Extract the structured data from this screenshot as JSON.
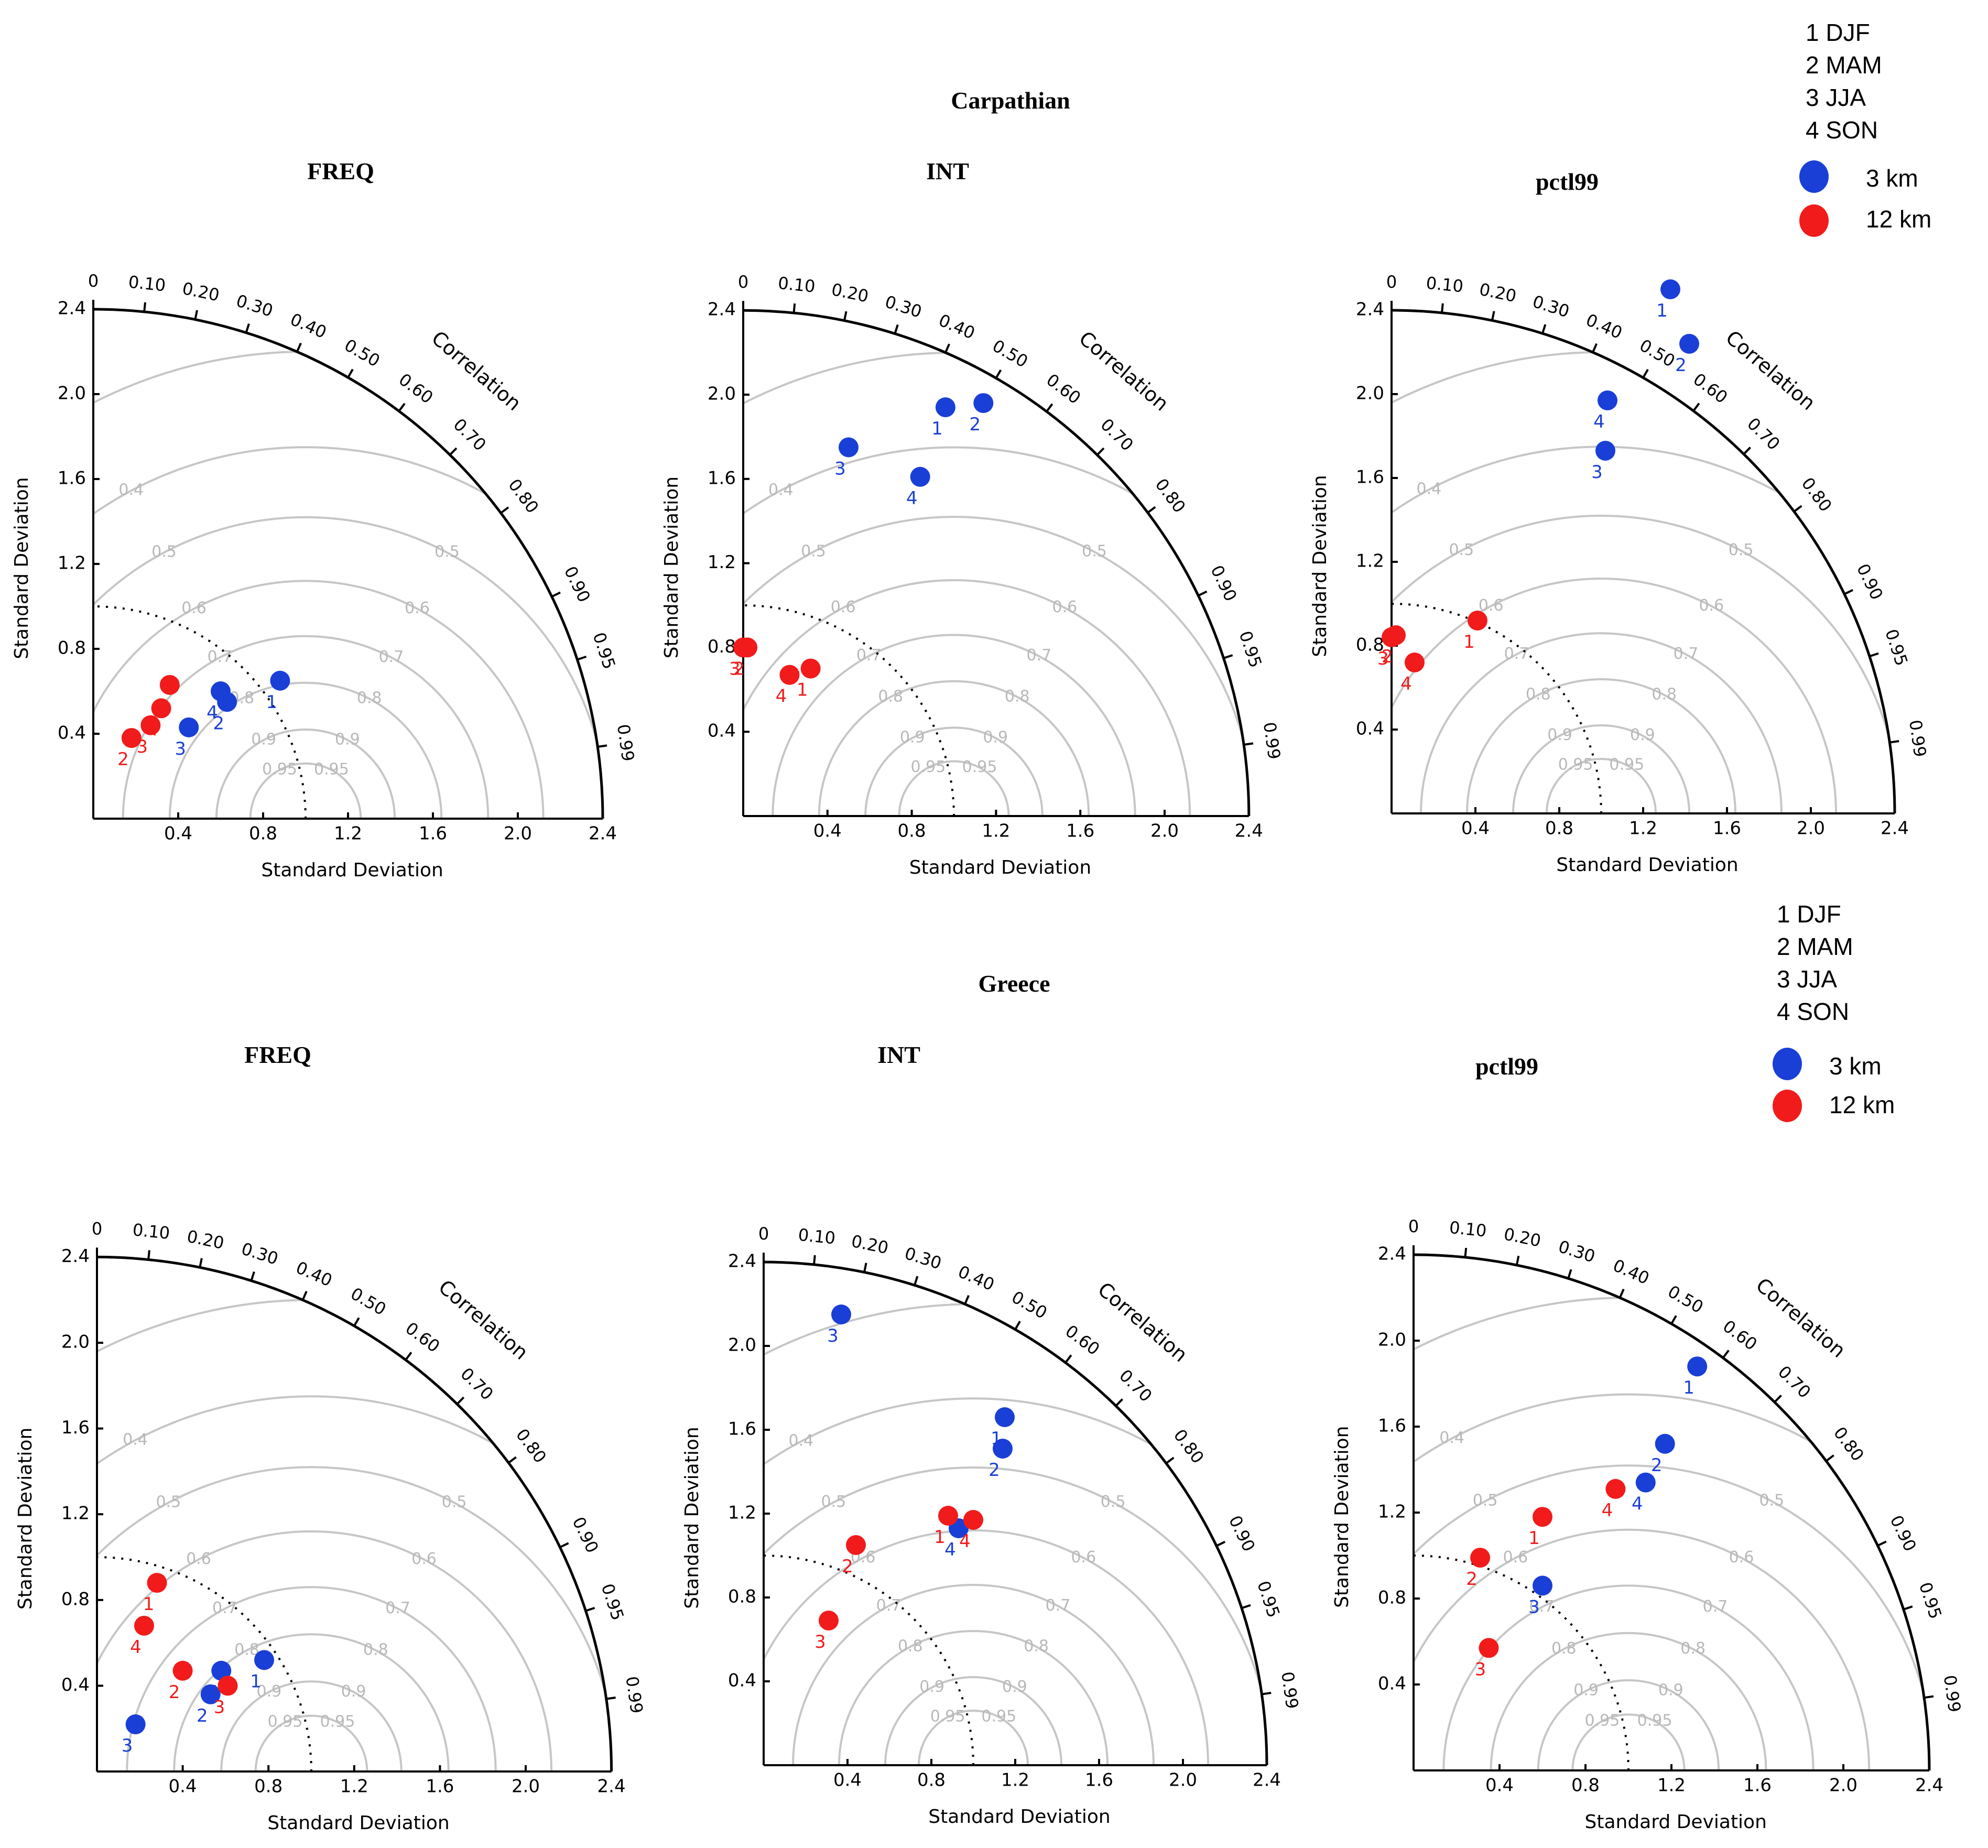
{
  "figure": {
    "legend": {
      "seasons": [
        "1 DJF",
        "2 MAM",
        "3 JJA",
        "4 SON"
      ],
      "resolutions": [
        {
          "label": "3 km",
          "color": "#1a3fd6"
        },
        {
          "label": "12 km",
          "color": "#f11b1b"
        }
      ]
    },
    "colors": {
      "blue": "#1a3fd6",
      "red": "#f11b1b",
      "rms": "#c6c6c6"
    }
  },
  "chart_data": [
    {
      "type": "taylor_diagram",
      "region": "Carpathian",
      "title": "FREQ",
      "xlabel": "Standard Deviation",
      "ylabel": "Standard Deviation",
      "corr_title": "Correlation",
      "xlim": [
        0,
        2.4
      ],
      "ylim": [
        0,
        2.4
      ],
      "reference_std": 1.0,
      "x_ticks": [
        "0.4",
        "0.8",
        "1.2",
        "1.6",
        "2.0",
        "2.4"
      ],
      "y_ticks": [
        "0.4",
        "0.8",
        "1.2",
        "1.6",
        "2.0",
        "2.4"
      ],
      "corr_ticks": [
        "0",
        "0.10",
        "0.20",
        "0.30",
        "0.40",
        "0.50",
        "0.60",
        "0.70",
        "0.80",
        "0.90",
        "0.95",
        "0.99"
      ],
      "series": [
        {
          "name": "3 km",
          "points": [
            {
              "label": "1",
              "x": 0.88,
              "y": 0.65
            },
            {
              "label": "2",
              "x": 0.63,
              "y": 0.55
            },
            {
              "label": "3",
              "x": 0.45,
              "y": 0.43
            },
            {
              "label": "4",
              "x": 0.6,
              "y": 0.6
            }
          ]
        },
        {
          "name": "12 km",
          "points": [
            {
              "label": "1",
              "x": 0.36,
              "y": 0.63
            },
            {
              "label": "2",
              "x": 0.18,
              "y": 0.38
            },
            {
              "label": "3",
              "x": 0.27,
              "y": 0.44
            },
            {
              "label": "4",
              "x": 0.32,
              "y": 0.52
            }
          ]
        }
      ]
    },
    {
      "type": "taylor_diagram",
      "region": "Carpathian",
      "title": "INT",
      "xlabel": "Standard Deviation",
      "ylabel": "Standard Deviation",
      "corr_title": "Correlation",
      "xlim": [
        0,
        2.4
      ],
      "ylim": [
        0,
        2.4
      ],
      "reference_std": 1.0,
      "x_ticks": [
        "0.4",
        "0.8",
        "1.2",
        "1.6",
        "2.0",
        "2.4"
      ],
      "y_ticks": [
        "0.4",
        "0.8",
        "1.2",
        "1.6",
        "2.0",
        "2.4"
      ],
      "corr_ticks": [
        "0",
        "0.10",
        "0.20",
        "0.30",
        "0.40",
        "0.50",
        "0.60",
        "0.70",
        "0.80",
        "0.90",
        "0.95",
        "0.99"
      ],
      "series": [
        {
          "name": "3 km",
          "points": [
            {
              "label": "1",
              "x": 0.96,
              "y": 1.94
            },
            {
              "label": "2",
              "x": 1.14,
              "y": 1.96
            },
            {
              "label": "3",
              "x": 0.5,
              "y": 1.75
            },
            {
              "label": "4",
              "x": 0.84,
              "y": 1.61
            }
          ]
        },
        {
          "name": "12 km",
          "points": [
            {
              "label": "1",
              "x": 0.32,
              "y": 0.7
            },
            {
              "label": "2",
              "x": 0.02,
              "y": 0.8
            },
            {
              "label": "3",
              "x": 0.0,
              "y": 0.8
            },
            {
              "label": "4",
              "x": 0.22,
              "y": 0.67
            }
          ]
        }
      ]
    },
    {
      "type": "taylor_diagram",
      "region": "Carpathian",
      "title": "pctl99",
      "xlabel": "Standard Deviation",
      "ylabel": "Standard Deviation",
      "corr_title": "Correlation",
      "xlim": [
        0,
        2.4
      ],
      "ylim": [
        0,
        2.4
      ],
      "reference_std": 1.0,
      "x_ticks": [
        "0.4",
        "0.8",
        "1.2",
        "1.6",
        "2.0",
        "2.4"
      ],
      "y_ticks": [
        "0.4",
        "0.8",
        "1.2",
        "1.6",
        "2.0",
        "2.4"
      ],
      "corr_ticks": [
        "0",
        "0.10",
        "0.20",
        "0.30",
        "0.40",
        "0.50",
        "0.60",
        "0.70",
        "0.80",
        "0.90",
        "0.95",
        "0.99"
      ],
      "series": [
        {
          "name": "3 km",
          "points": [
            {
              "label": "1",
              "x": 1.33,
              "y": 2.5
            },
            {
              "label": "2",
              "x": 1.42,
              "y": 2.24
            },
            {
              "label": "3",
              "x": 1.02,
              "y": 1.73
            },
            {
              "label": "4",
              "x": 1.03,
              "y": 1.97
            }
          ]
        },
        {
          "name": "12 km",
          "points": [
            {
              "label": "1",
              "x": 0.41,
              "y": 0.92
            },
            {
              "label": "2",
              "x": 0.02,
              "y": 0.85
            },
            {
              "label": "3",
              "x": 0.0,
              "y": 0.84
            },
            {
              "label": "4",
              "x": 0.11,
              "y": 0.72
            }
          ]
        }
      ]
    },
    {
      "type": "taylor_diagram",
      "region": "Greece",
      "title": "FREQ",
      "xlabel": "Standard Deviation",
      "ylabel": "Standard Deviation",
      "corr_title": "Correlation",
      "xlim": [
        0,
        2.4
      ],
      "ylim": [
        0,
        2.4
      ],
      "reference_std": 1.0,
      "x_ticks": [
        "0.4",
        "0.8",
        "1.2",
        "1.6",
        "2.0",
        "2.4"
      ],
      "y_ticks": [
        "0.4",
        "0.8",
        "1.2",
        "1.6",
        "2.0",
        "2.4"
      ],
      "corr_ticks": [
        "0",
        "0.10",
        "0.20",
        "0.30",
        "0.40",
        "0.50",
        "0.60",
        "0.70",
        "0.80",
        "0.90",
        "0.95",
        "0.99"
      ],
      "series": [
        {
          "name": "3 km",
          "points": [
            {
              "label": "1",
              "x": 0.78,
              "y": 0.52
            },
            {
              "label": "2",
              "x": 0.53,
              "y": 0.36
            },
            {
              "label": "3",
              "x": 0.18,
              "y": 0.22
            },
            {
              "label": "4",
              "x": 0.58,
              "y": 0.47
            }
          ]
        },
        {
          "name": "12 km",
          "points": [
            {
              "label": "1",
              "x": 0.28,
              "y": 0.88
            },
            {
              "label": "2",
              "x": 0.4,
              "y": 0.47
            },
            {
              "label": "3",
              "x": 0.61,
              "y": 0.4
            },
            {
              "label": "4",
              "x": 0.22,
              "y": 0.68
            }
          ]
        }
      ]
    },
    {
      "type": "taylor_diagram",
      "region": "Greece",
      "title": "INT",
      "xlabel": "Standard Deviation",
      "ylabel": "Standard Deviation",
      "corr_title": "Correlation",
      "xlim": [
        0,
        2.4
      ],
      "ylim": [
        0,
        2.4
      ],
      "reference_std": 1.0,
      "x_ticks": [
        "0.4",
        "0.8",
        "1.2",
        "1.6",
        "2.0",
        "2.4"
      ],
      "y_ticks": [
        "0.4",
        "0.8",
        "1.2",
        "1.6",
        "2.0",
        "2.4"
      ],
      "corr_ticks": [
        "0",
        "0.10",
        "0.20",
        "0.30",
        "0.40",
        "0.50",
        "0.60",
        "0.70",
        "0.80",
        "0.90",
        "0.95",
        "0.99"
      ],
      "series": [
        {
          "name": "3 km",
          "points": [
            {
              "label": "1",
              "x": 1.15,
              "y": 1.66
            },
            {
              "label": "2",
              "x": 1.14,
              "y": 1.51
            },
            {
              "label": "3",
              "x": 0.37,
              "y": 2.15
            },
            {
              "label": "4",
              "x": 0.93,
              "y": 1.13
            }
          ]
        },
        {
          "name": "12 km",
          "points": [
            {
              "label": "1",
              "x": 0.88,
              "y": 1.19
            },
            {
              "label": "2",
              "x": 0.44,
              "y": 1.05
            },
            {
              "label": "3",
              "x": 0.31,
              "y": 0.69
            },
            {
              "label": "4",
              "x": 1.0,
              "y": 1.17
            }
          ]
        }
      ]
    },
    {
      "type": "taylor_diagram",
      "region": "Greece",
      "title": "pctl99",
      "xlabel": "Standard Deviation",
      "ylabel": "Standard Deviation",
      "corr_title": "Correlation",
      "xlim": [
        0,
        2.4
      ],
      "ylim": [
        0,
        2.4
      ],
      "reference_std": 1.0,
      "x_ticks": [
        "0.4",
        "0.8",
        "1.2",
        "1.6",
        "2.0",
        "2.4"
      ],
      "y_ticks": [
        "0.4",
        "0.8",
        "1.2",
        "1.6",
        "2.0",
        "2.4"
      ],
      "corr_ticks": [
        "0",
        "0.10",
        "0.20",
        "0.30",
        "0.40",
        "0.50",
        "0.60",
        "0.70",
        "0.80",
        "0.90",
        "0.95",
        "0.99"
      ],
      "series": [
        {
          "name": "3 km",
          "points": [
            {
              "label": "1",
              "x": 1.32,
              "y": 1.88
            },
            {
              "label": "2",
              "x": 1.17,
              "y": 1.52
            },
            {
              "label": "3",
              "x": 0.6,
              "y": 0.86
            },
            {
              "label": "4",
              "x": 1.08,
              "y": 1.34
            }
          ]
        },
        {
          "name": "12 km",
          "points": [
            {
              "label": "1",
              "x": 0.6,
              "y": 1.18
            },
            {
              "label": "2",
              "x": 0.31,
              "y": 0.99
            },
            {
              "label": "3",
              "x": 0.35,
              "y": 0.57
            },
            {
              "label": "4",
              "x": 0.94,
              "y": 1.31
            }
          ]
        }
      ]
    }
  ]
}
